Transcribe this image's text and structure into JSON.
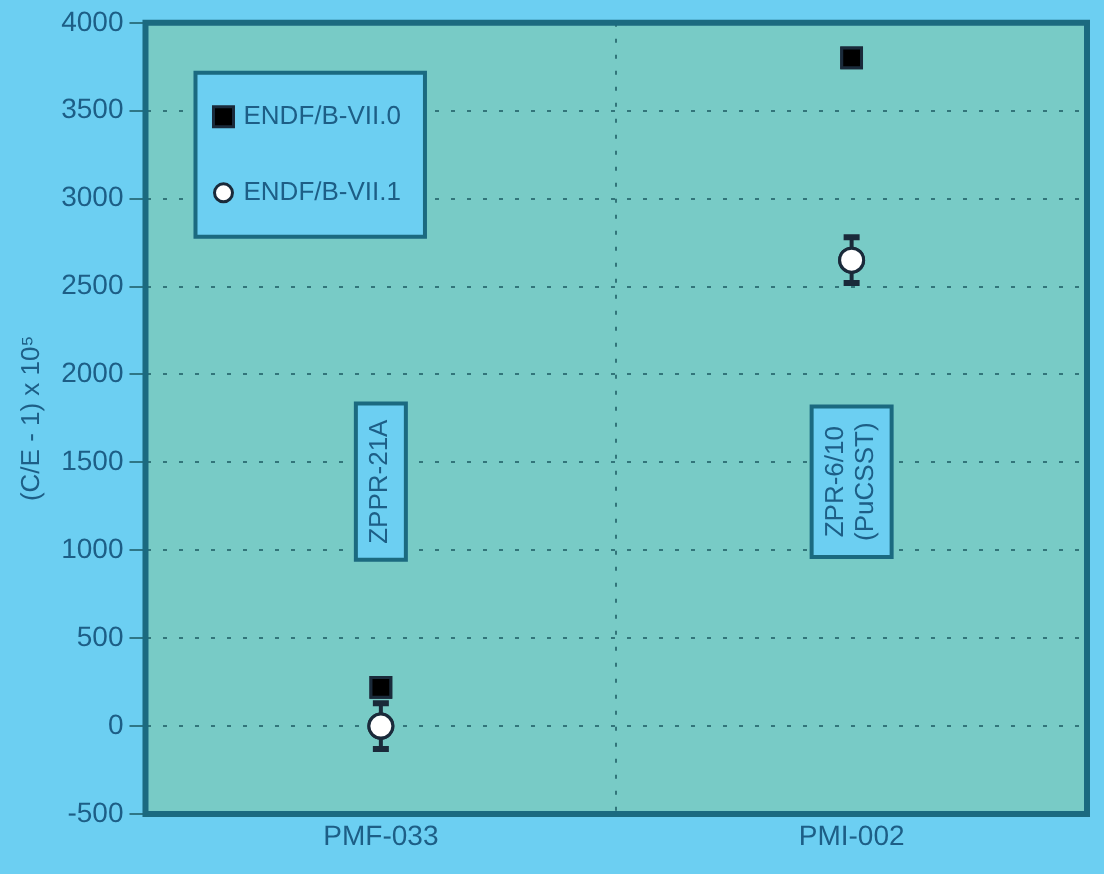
{
  "chart_data": {
    "type": "scatter",
    "ylabel": "(C/E - 1) x 10⁵",
    "categories": [
      "PMF-033",
      "PMI-002"
    ],
    "series": [
      {
        "name": "ENDF/B-VII.0",
        "color": "#000000",
        "marker": "square",
        "values": [
          220,
          3800
        ]
      },
      {
        "name": "ENDF/B-VII.1",
        "color": "#ffffff",
        "marker": "circle",
        "values": [
          0,
          2650
        ],
        "errors": [
          130,
          130
        ]
      }
    ],
    "ylim": [
      -500,
      4000
    ],
    "yticks": [
      -500,
      0,
      500,
      1000,
      1500,
      2000,
      2500,
      3000,
      3500,
      4000
    ],
    "grid": true,
    "legend": "top left",
    "annotations": [
      "ZPPR-21A",
      "ZPR-6/10\n(PuCSST)"
    ]
  }
}
